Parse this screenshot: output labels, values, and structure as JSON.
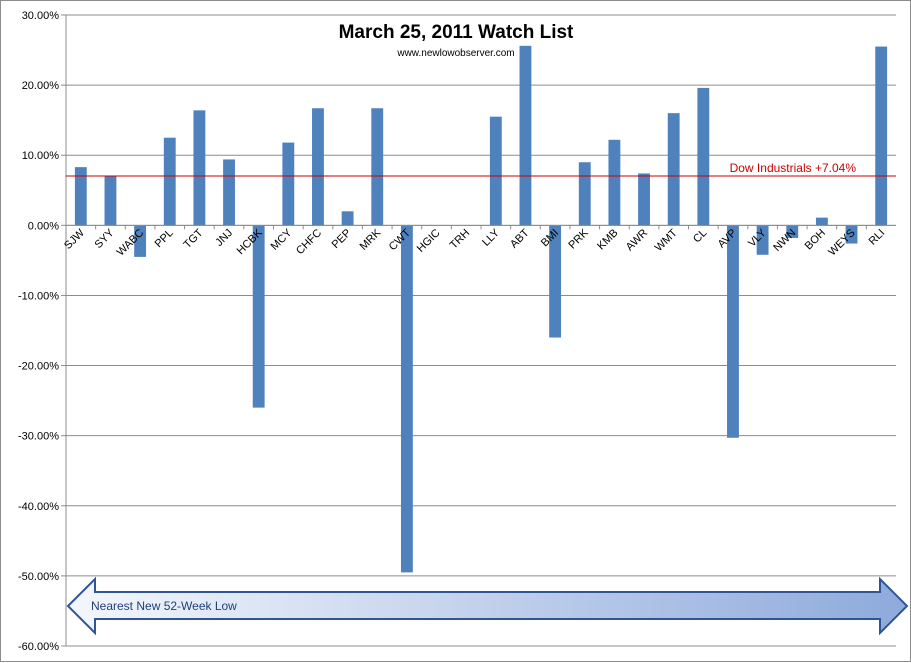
{
  "chart_data": {
    "type": "bar",
    "title": "March 25, 2011 Watch List",
    "subtitle": "www.newlowobserver.com",
    "categories": [
      "SJW",
      "SYY",
      "WABC",
      "PPL",
      "TGT",
      "JNJ",
      "HCBK",
      "MCY",
      "CHFC",
      "PEP",
      "MRK",
      "CWT",
      "HGIC",
      "TRH",
      "LLY",
      "ABT",
      "BMI",
      "PRK",
      "KMB",
      "AWR",
      "WMT",
      "CL",
      "AVP",
      "VLY",
      "NWN",
      "BOH",
      "WEYS",
      "RLI"
    ],
    "series": [
      {
        "values": [
          8.3,
          7.1,
          -4.5,
          12.5,
          16.4,
          9.4,
          -26.0,
          11.8,
          16.7,
          2.0,
          16.7,
          -49.5,
          0,
          0,
          15.5,
          25.6,
          -16.0,
          9.0,
          12.2,
          7.4,
          16.0,
          19.6,
          -30.3,
          -4.2,
          -1.8,
          1.1,
          -2.6,
          25.5
        ]
      }
    ],
    "ylim": [
      -60,
      30
    ],
    "yticks": [
      "30.00%",
      "20.00%",
      "10.00%",
      "0.00%",
      "-10.00%",
      "-20.00%",
      "-30.00%",
      "-40.00%",
      "-50.00%",
      "-60.00%"
    ],
    "ytick_values": [
      30,
      20,
      10,
      0,
      -10,
      -20,
      -30,
      -40,
      -50,
      -60
    ],
    "grid": true,
    "bar_color": "#4f81bd",
    "reference_line": {
      "value": 7.04,
      "label": "Dow Industrials +7.04%",
      "color": "#cc0000"
    },
    "annotation_arrow": {
      "label": "Nearest New 52-Week Low"
    }
  }
}
